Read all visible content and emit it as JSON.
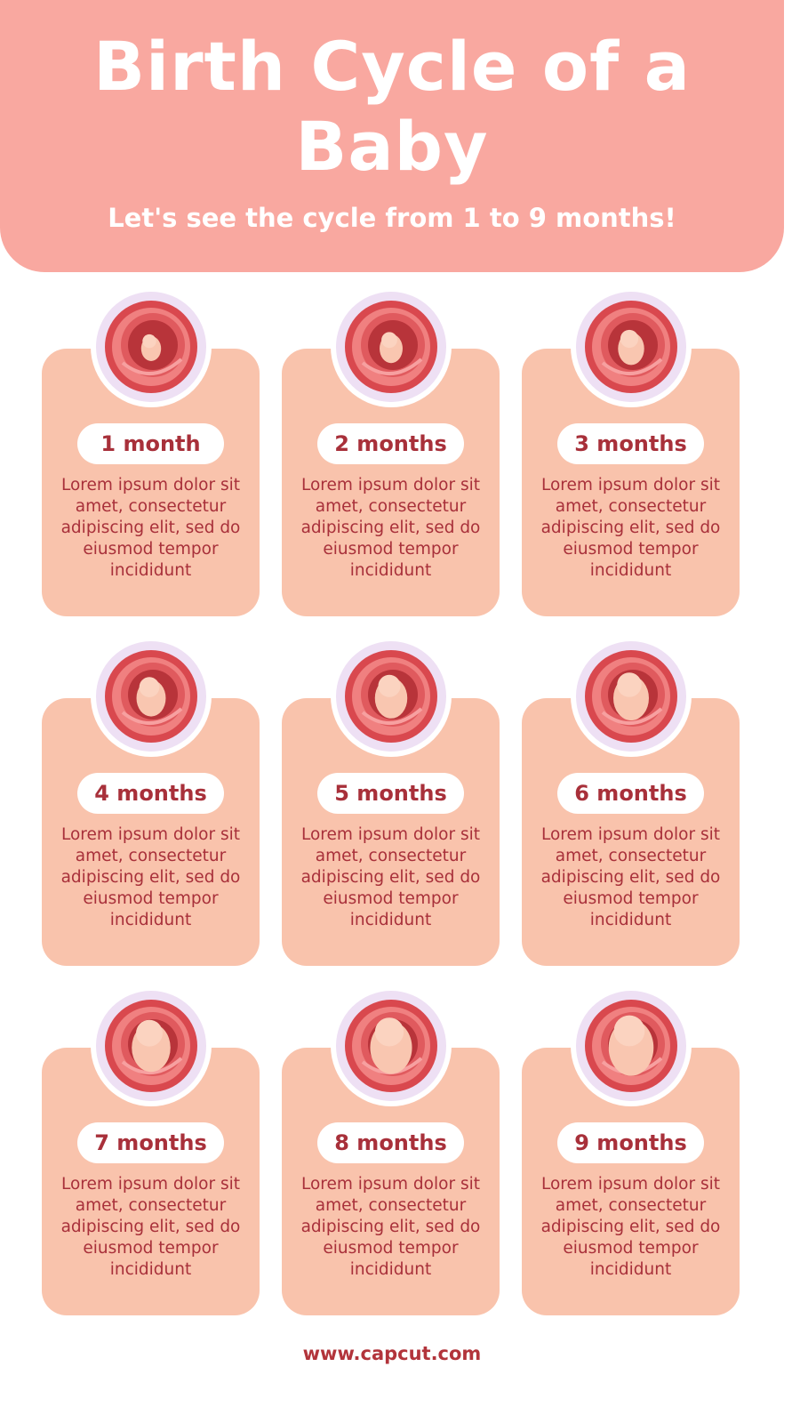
{
  "header": {
    "title": "Birth Cycle of a Baby",
    "subtitle": "Let's see the cycle from 1 to 9 months!"
  },
  "stages": [
    {
      "label": "1 month",
      "description": "Lorem ipsum dolor sit amet, consectetur adipiscing elit, sed do eiusmod tempor incididunt",
      "icon": "fetus-1-month-icon"
    },
    {
      "label": "2 months",
      "description": "Lorem ipsum dolor sit amet, consectetur adipiscing elit, sed do eiusmod tempor incididunt",
      "icon": "fetus-2-months-icon"
    },
    {
      "label": "3 months",
      "description": "Lorem ipsum dolor sit amet, consectetur adipiscing elit, sed do eiusmod tempor incididunt",
      "icon": "fetus-3-months-icon"
    },
    {
      "label": "4 months",
      "description": "Lorem ipsum dolor sit amet, consectetur adipiscing elit, sed do eiusmod tempor incididunt",
      "icon": "fetus-4-months-icon"
    },
    {
      "label": "5 months",
      "description": "Lorem ipsum dolor sit amet, consectetur adipiscing elit, sed do eiusmod tempor incididunt",
      "icon": "fetus-5-months-icon"
    },
    {
      "label": "6 months",
      "description": "Lorem ipsum dolor sit amet, consectetur adipiscing elit, sed do eiusmod tempor incididunt",
      "icon": "fetus-6-months-icon"
    },
    {
      "label": "7 months",
      "description": "Lorem ipsum dolor sit amet, consectetur adipiscing elit, sed do eiusmod tempor incididunt",
      "icon": "fetus-7-months-icon"
    },
    {
      "label": "8 months",
      "description": "Lorem ipsum dolor sit amet, consectetur adipiscing elit, sed do eiusmod tempor incididunt",
      "icon": "fetus-8-months-icon"
    },
    {
      "label": "9 months",
      "description": "Lorem ipsum dolor sit amet, consectetur adipiscing elit, sed do eiusmod tempor incididunt",
      "icon": "fetus-9-months-icon"
    }
  ],
  "footer": {
    "url": "www.capcut.com"
  },
  "colors": {
    "header": "#F9A8A0",
    "card": "#F9C3AC",
    "text": "#A8303A",
    "ring": "#EEE0F4",
    "womb": "#D9484E"
  }
}
